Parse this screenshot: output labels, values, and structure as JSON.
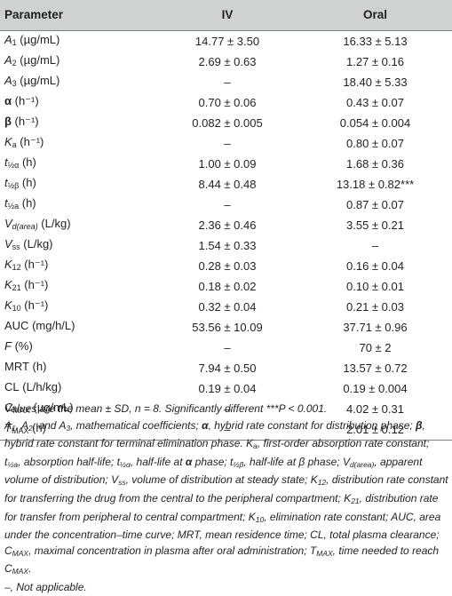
{
  "table": {
    "headers": {
      "parameter": "Parameter",
      "iv": "IV",
      "oral": "Oral"
    },
    "rows": [
      {
        "sym": "A",
        "sub": "1",
        "unit": " (µg/mL)",
        "iv": "14.77 ± 3.50",
        "oral": "16.33 ± 5.13"
      },
      {
        "sym": "A",
        "sub": "2",
        "unit": " (µg/mL)",
        "iv": "2.69 ± 0.63",
        "oral": "1.27 ± 0.16"
      },
      {
        "sym": "A",
        "sub": "3",
        "unit": " (µg/mL)",
        "iv": "–",
        "oral": "18.40 ± 5.33"
      },
      {
        "sym": "α",
        "sub": "",
        "unit": " (h⁻¹)",
        "iv": "0.70 ± 0.06",
        "oral": "0.43 ± 0.07"
      },
      {
        "sym": "β",
        "sub": "",
        "unit": " (h⁻¹)",
        "iv": "0.082 ± 0.005",
        "oral": "0.054 ± 0.004"
      },
      {
        "sym": "K",
        "sub": "a",
        "unit": " (h⁻¹)",
        "iv": "–",
        "oral": "0.80 ± 0.07"
      },
      {
        "sym": "t",
        "sub": "½α",
        "unit": " (h)",
        "iv": "1.00 ± 0.09",
        "oral": "1.68 ± 0.36"
      },
      {
        "sym": "t",
        "sub": "½β",
        "unit": " (h)",
        "iv": "8.44 ± 0.48",
        "oral": "13.18 ± 0.82***"
      },
      {
        "sym": "t",
        "sub": "½a",
        "unit": " (h)",
        "iv": "–",
        "oral": "0.87 ± 0.07"
      },
      {
        "sym": "V",
        "sub": "d(area)",
        "unit": " (L/kg)",
        "iv": "2.36 ± 0.46",
        "oral": "3.55 ± 0.21"
      },
      {
        "sym": "V",
        "sub": "ss",
        "unit": " (L/kg)",
        "iv": "1.54 ± 0.33",
        "oral": "–"
      },
      {
        "sym": "K",
        "sub": "12",
        "unit": " (h⁻¹)",
        "iv": "0.28 ± 0.03",
        "oral": "0.16 ± 0.04"
      },
      {
        "sym": "K",
        "sub": "21",
        "unit": " (h⁻¹)",
        "iv": "0.18 ± 0.02",
        "oral": "0.10 ± 0.01"
      },
      {
        "sym": "K",
        "sub": "10",
        "unit": " (h⁻¹)",
        "iv": "0.32 ± 0.04",
        "oral": "0.21 ± 0.03"
      },
      {
        "sym": "AUC",
        "sub": "",
        "unit": " (mg/h/L)",
        "iv": "53.56 ± 10.09",
        "oral": "37.71 ± 0.96"
      },
      {
        "sym": "F",
        "sub": "",
        "unit": " (%)",
        "iv": "–",
        "oral": "70 ± 2"
      },
      {
        "sym": "MRT",
        "sub": "",
        "unit": " (h)",
        "iv": "7.94 ± 0.50",
        "oral": "13.57 ± 0.72"
      },
      {
        "sym": "CL",
        "sub": "",
        "unit": " (L/h/kg)",
        "iv": "0.19 ± 0.04",
        "oral": "0.19 ± 0.004"
      },
      {
        "sym": "C",
        "sub": "MAX",
        "unit": " (µg/mL)",
        "iv": "–",
        "oral": "4.02 ± 0.31"
      },
      {
        "sym": "T",
        "sub": "MAX",
        "unit": " (h)",
        "iv": "–",
        "oral": "2.01 ± 0.12"
      }
    ]
  },
  "footnotes": {
    "stats": "Values are the mean ± SD, n = 8. Significantly different ***P < 0.001.",
    "f_a1": "A",
    "f_a1_sub": "1",
    "f_comma1": ", ",
    "f_a2": "A",
    "f_a2_sub": "2",
    "f_and": ", and ",
    "f_a3": "A",
    "f_a3_sub": "3",
    "f_mathcoef": ", mathematical coefficients; ",
    "f_alpha": "α",
    "f_alpha_def": ", hybrid rate constant for distribution phase; ",
    "f_beta": "β",
    "f_beta_def": ", hybrid rate constant for terminal elimination phase. ",
    "f_ka": "K",
    "f_ka_sub": "a",
    "f_ka_def": ", first-order absorption rate constant; ",
    "f_t": "t",
    "f_tha_sub": "½a",
    "f_tha_def": ", absorption half-life; ",
    "f_thalpha_sub": "½α",
    "f_thalpha_def": ", half-life at ",
    "f_thalpha_phase": "α",
    "f_thalpha_end": " phase; ",
    "f_thbeta_sub": "½β",
    "f_thbeta_def": ", half-life at ",
    "f_thbeta_phase": "β",
    "f_thbeta_end": " phase; ",
    "f_v": "V",
    "f_vd_sub": "d(area)",
    "f_vd_def": ", apparent volume of distribution; ",
    "f_vss_sub": "ss",
    "f_vss_def": ", volume of distribution at steady state; ",
    "f_k": "K",
    "f_k12_sub": "12",
    "f_k12_def": ", distribution rate constant for transferring the drug from the central to the peripheral compartment; ",
    "f_k21_sub": "21",
    "f_k21_def": ", distribution rate for transfer from peripheral to central compartment; ",
    "f_k10_sub": "10",
    "f_k10_def": ", elimination rate constant; AUC, area under the concentration–time curve; MRT, mean residence time; CL, total plasma clearance; ",
    "f_c": "C",
    "f_cmax_sub": "MAX",
    "f_cmax_def": ", maximal concentration in plasma after oral administration; ",
    "f_tcap": "T",
    "f_tmax_sub": "MAX",
    "f_tmax_def": ", time needed to reach ",
    "f_c2": "C",
    "f_c2_sub": "MAX",
    "f_period": ".",
    "na": "–, Not applicable."
  }
}
